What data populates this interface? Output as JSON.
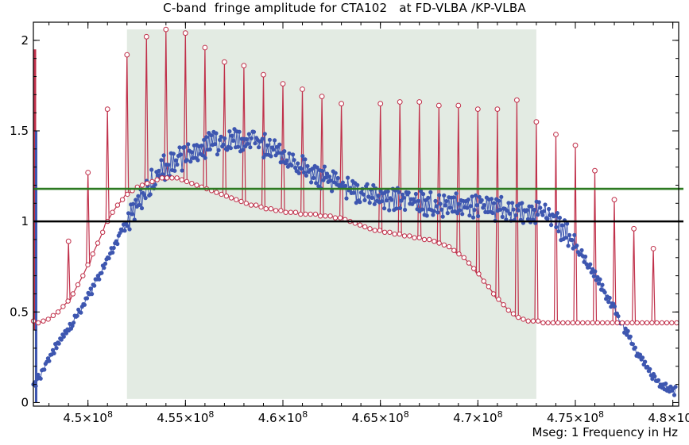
{
  "chart_data": {
    "type": "line",
    "title": "C-band  fringe amplitude for CTA102   at FD-VLBA /KP-VLBA",
    "xlabel": "Mseg: 1 Frequency in Hz",
    "ylabel": "",
    "xlim": [
      447200000,
      480300000
    ],
    "ylim": [
      -0.02,
      2.1
    ],
    "grid": false,
    "x_ticks": [
      {
        "value": 450000000,
        "mantissa": "4.5",
        "exponent": "8"
      },
      {
        "value": 455000000,
        "mantissa": "4.55",
        "exponent": "8"
      },
      {
        "value": 460000000,
        "mantissa": "4.6",
        "exponent": "8"
      },
      {
        "value": 465000000,
        "mantissa": "4.65",
        "exponent": "8"
      },
      {
        "value": 470000000,
        "mantissa": "4.7",
        "exponent": "8"
      },
      {
        "value": 475000000,
        "mantissa": "4.75",
        "exponent": "8"
      },
      {
        "value": 480000000,
        "mantissa": "4.8",
        "exponent": "8"
      }
    ],
    "y_ticks": [
      {
        "value": 0,
        "label": "0"
      },
      {
        "value": 0.5,
        "label": "0.5"
      },
      {
        "value": 1,
        "label": "1"
      },
      {
        "value": 1.5,
        "label": "1.5"
      },
      {
        "value": 2,
        "label": "2"
      }
    ],
    "shaded_region": {
      "x_from": 452000000,
      "x_to": 473000000,
      "y_from": 0.02,
      "y_to": 2.06,
      "color": "#e3ebe3"
    },
    "reference_lines": [
      {
        "y": 1.0,
        "color": "#000000"
      },
      {
        "y": 1.18,
        "color": "#2d7a22"
      }
    ],
    "series": [
      {
        "marker": "filled-circle",
        "color": "#3d56b0",
        "x_start": 447200000,
        "x_step": 60000,
        "values": [
          0.1,
          0.13,
          0.18,
          0.23,
          0.28,
          0.32,
          0.36,
          0.4,
          0.44,
          0.49,
          0.53,
          0.58,
          0.62,
          0.68,
          0.72,
          0.78,
          0.83,
          0.88,
          0.94,
          0.98,
          1.04,
          1.08,
          1.13,
          1.17,
          1.21,
          1.25,
          1.28,
          1.3,
          1.31,
          1.32,
          1.34,
          1.36,
          1.37,
          1.39,
          1.4,
          1.41,
          1.42,
          1.43,
          1.43,
          1.44,
          1.44,
          1.45,
          1.45,
          1.45,
          1.45,
          1.44,
          1.43,
          1.42,
          1.41,
          1.4,
          1.39,
          1.37,
          1.35,
          1.34,
          1.32,
          1.3,
          1.29,
          1.27,
          1.26,
          1.24,
          1.23,
          1.22,
          1.21,
          1.2,
          1.19,
          1.18,
          1.17,
          1.16,
          1.16,
          1.15,
          1.14,
          1.14,
          1.13,
          1.13,
          1.12,
          1.12,
          1.12,
          1.11,
          1.11,
          1.11,
          1.1,
          1.1,
          1.1,
          1.1,
          1.09,
          1.09,
          1.09,
          1.09,
          1.08,
          1.08,
          1.08,
          1.08,
          1.08,
          1.08,
          1.07,
          1.07,
          1.07,
          1.07,
          1.07,
          1.07,
          1.06,
          1.06,
          1.06,
          1.05,
          1.04,
          1.03,
          1.01,
          0.99,
          0.97,
          0.94,
          0.91,
          0.88,
          0.84,
          0.8,
          0.76,
          0.71,
          0.67,
          0.62,
          0.57,
          0.52,
          0.47,
          0.42,
          0.37,
          0.32,
          0.27,
          0.23,
          0.19,
          0.15,
          0.12,
          0.1,
          0.08,
          0.07,
          0.06
        ]
      },
      {
        "marker": "open-circle",
        "color": "#c0304a",
        "x_start": 447200000,
        "x_step": 60000,
        "values": [
          0.45,
          0.44,
          0.45,
          0.46,
          0.48,
          0.5,
          0.53,
          0.56,
          0.6,
          0.65,
          0.7,
          0.76,
          0.82,
          0.88,
          0.94,
          1.0,
          1.05,
          1.09,
          1.12,
          1.15,
          1.17,
          1.19,
          1.2,
          1.21,
          1.22,
          1.23,
          1.24,
          1.24,
          1.24,
          1.24,
          1.23,
          1.22,
          1.21,
          1.2,
          1.19,
          1.18,
          1.17,
          1.16,
          1.15,
          1.14,
          1.13,
          1.12,
          1.11,
          1.1,
          1.09,
          1.09,
          1.08,
          1.07,
          1.07,
          1.06,
          1.06,
          1.05,
          1.05,
          1.05,
          1.04,
          1.04,
          1.04,
          1.04,
          1.03,
          1.03,
          1.03,
          1.02,
          1.02,
          1.01,
          1.0,
          0.99,
          0.98,
          0.97,
          0.96,
          0.95,
          0.95,
          0.94,
          0.94,
          0.93,
          0.93,
          0.92,
          0.92,
          0.91,
          0.91,
          0.9,
          0.9,
          0.89,
          0.88,
          0.87,
          0.86,
          0.84,
          0.82,
          0.8,
          0.77,
          0.74,
          0.71,
          0.67,
          0.64,
          0.6,
          0.57,
          0.54,
          0.51,
          0.49,
          0.47,
          0.46,
          0.45,
          0.45,
          0.45,
          0.44,
          0.44,
          0.44,
          0.44,
          0.44,
          0.44,
          0.44,
          0.44,
          0.44,
          0.44,
          0.44,
          0.44,
          0.44,
          0.44,
          0.44,
          0.44,
          0.44,
          0.44,
          0.44,
          0.44,
          0.44,
          0.44,
          0.44,
          0.44,
          0.44,
          0.44,
          0.44,
          0.44
        ]
      }
    ],
    "spikes": [
      {
        "x": 449000000,
        "y": 0.89
      },
      {
        "x": 450000000,
        "y": 1.27
      },
      {
        "x": 451000000,
        "y": 1.62
      },
      {
        "x": 452000000,
        "y": 1.92
      },
      {
        "x": 453000000,
        "y": 2.02
      },
      {
        "x": 454000000,
        "y": 2.06
      },
      {
        "x": 455000000,
        "y": 2.04
      },
      {
        "x": 456000000,
        "y": 1.96
      },
      {
        "x": 457000000,
        "y": 1.88
      },
      {
        "x": 458000000,
        "y": 1.86
      },
      {
        "x": 459000000,
        "y": 1.81
      },
      {
        "x": 460000000,
        "y": 1.76
      },
      {
        "x": 461000000,
        "y": 1.73
      },
      {
        "x": 462000000,
        "y": 1.69
      },
      {
        "x": 463000000,
        "y": 1.65
      },
      {
        "x": 465000000,
        "y": 1.65
      },
      {
        "x": 466000000,
        "y": 1.66
      },
      {
        "x": 467000000,
        "y": 1.66
      },
      {
        "x": 468000000,
        "y": 1.64
      },
      {
        "x": 469000000,
        "y": 1.64
      },
      {
        "x": 470000000,
        "y": 1.62
      },
      {
        "x": 471000000,
        "y": 1.62
      },
      {
        "x": 472000000,
        "y": 1.67
      },
      {
        "x": 473000000,
        "y": 1.55
      },
      {
        "x": 474000000,
        "y": 1.48
      },
      {
        "x": 475000000,
        "y": 1.42
      },
      {
        "x": 476000000,
        "y": 1.28
      },
      {
        "x": 477000000,
        "y": 1.12
      },
      {
        "x": 478000000,
        "y": 0.96
      },
      {
        "x": 479000000,
        "y": 0.85
      }
    ]
  }
}
